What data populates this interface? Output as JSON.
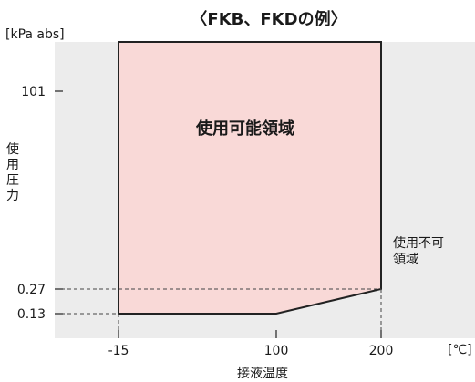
{
  "chart_data": {
    "type": "area",
    "title": "〈FKB、FKDの例〉",
    "ylabel": "使用圧力",
    "y_unit": "[kPa abs]",
    "xlabel": "接液温度",
    "x_unit": "[℃]",
    "x_ticks": [
      {
        "value": -15,
        "label": "-15"
      },
      {
        "value": 100,
        "label": "100"
      },
      {
        "value": 200,
        "label": "200"
      }
    ],
    "y_ticks": [
      {
        "value": 0.13,
        "label": "0.13"
      },
      {
        "value": 0.27,
        "label": "0.27"
      },
      {
        "value": 101,
        "label": "101"
      }
    ],
    "region": {
      "label": "使用可能領域",
      "boundary": [
        {
          "x": -15,
          "y": 0.13
        },
        {
          "x": 100,
          "y": 0.13
        },
        {
          "x": 200,
          "y": 0.27
        }
      ]
    },
    "outside_label": "使用不可\n領域",
    "colors": {
      "plot_bg": "#ececec",
      "region_fill": "#f9d9d7",
      "line": "#222222"
    }
  }
}
